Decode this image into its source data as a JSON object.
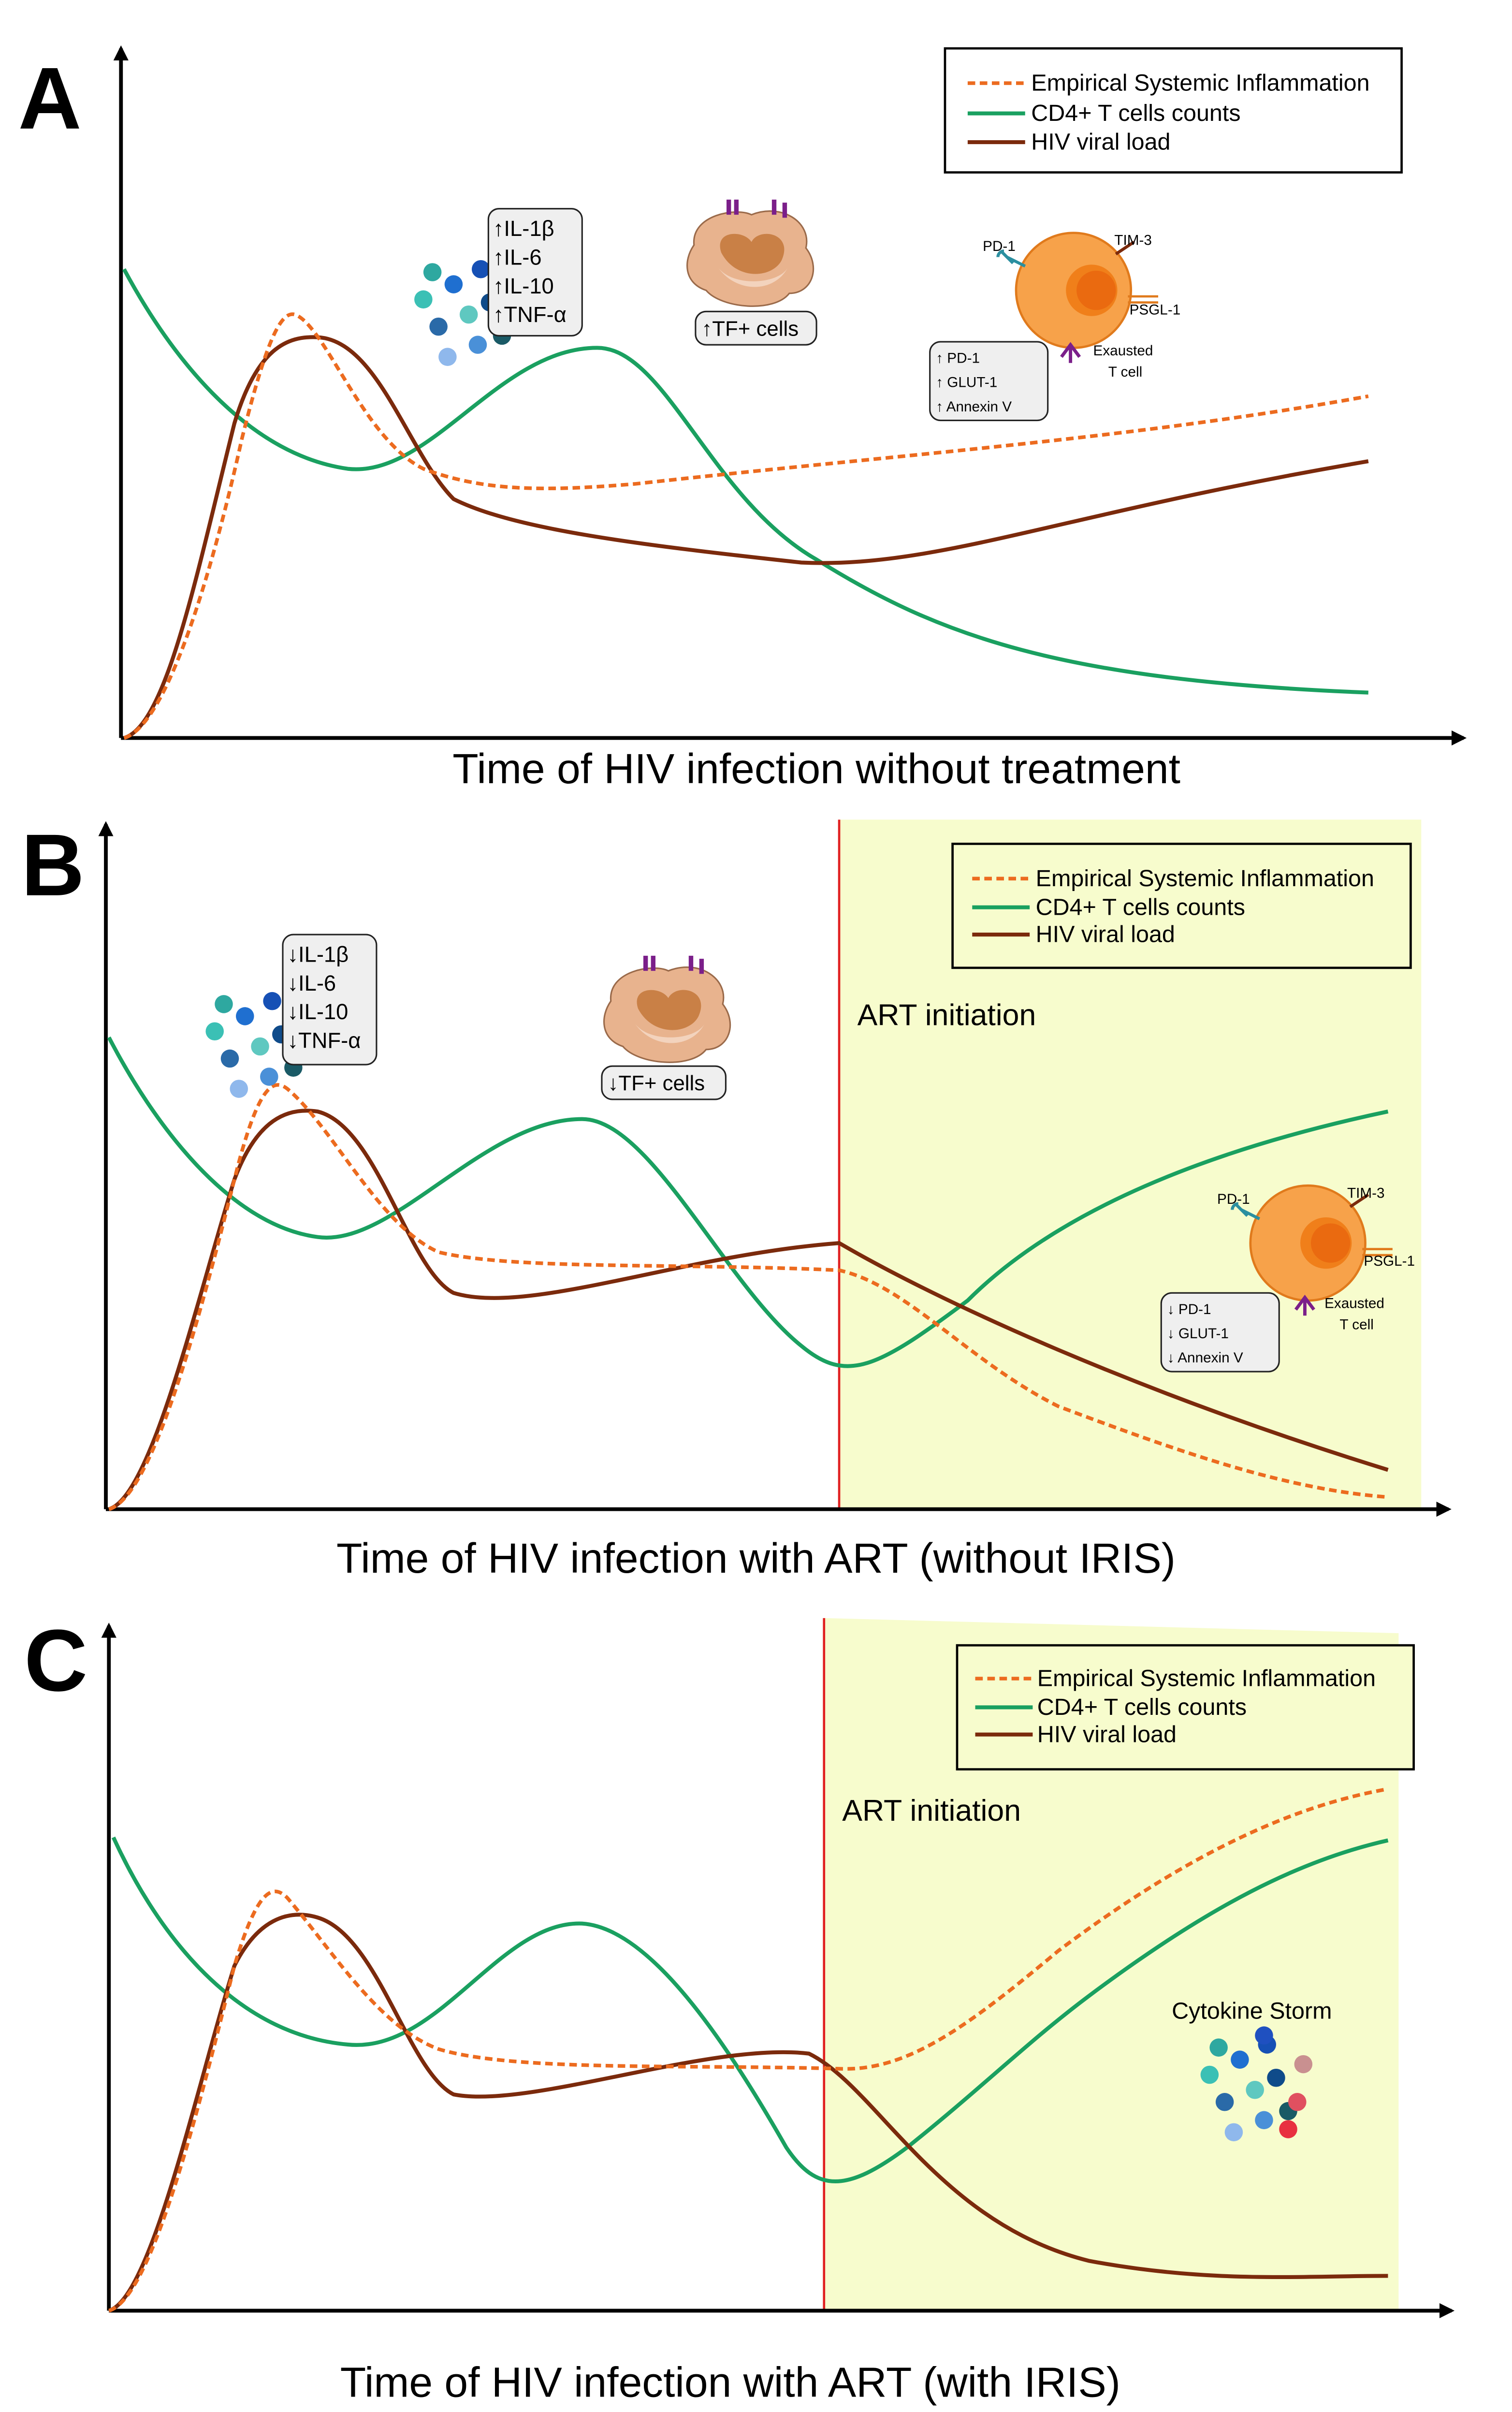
{
  "panels": [
    {
      "label": "A",
      "legend": [
        "Empirical Systemic Inflammation",
        "CD4+ T cells counts",
        "HIV viral load"
      ],
      "x_axis_label": "Time of HIV infection without treatment",
      "cytokines": [
        "↑IL-1β",
        "↑IL-6",
        "↑IL-10",
        "↑TNF-α"
      ],
      "tf_cells": "↑TF+ cells",
      "exhausted_markers": [
        "↑ PD-1",
        "↑ GLUT-1",
        "↑ Annexin V"
      ],
      "cell_labels": [
        "PD-1",
        "TIM-3",
        "PSGL-1",
        "Exausted",
        "T cell"
      ]
    },
    {
      "label": "B",
      "legend": [
        "Empirical Systemic Inflammation",
        "CD4+ T cells counts",
        "HIV viral load"
      ],
      "x_axis_label": "Time of HIV infection with ART (without IRIS)",
      "cytokines": [
        "↓IL-1β",
        "↓IL-6",
        "↓IL-10",
        "↓TNF-α"
      ],
      "tf_cells": "↓TF+ cells",
      "art": "ART initiation",
      "exhausted_markers": [
        "↓ PD-1",
        "↓ GLUT-1",
        "↓ Annexin V"
      ],
      "cell_labels": [
        "PD-1",
        "TIM-3",
        "PSGL-1",
        "Exausted",
        "T cell"
      ]
    },
    {
      "label": "C",
      "legend": [
        "Empirical Systemic Inflammation",
        "CD4+ T cells counts",
        "HIV viral load"
      ],
      "x_axis_label": "Time of HIV infection with ART (with IRIS)",
      "art": "ART initiation",
      "storm": "Cytokine Storm"
    }
  ]
}
